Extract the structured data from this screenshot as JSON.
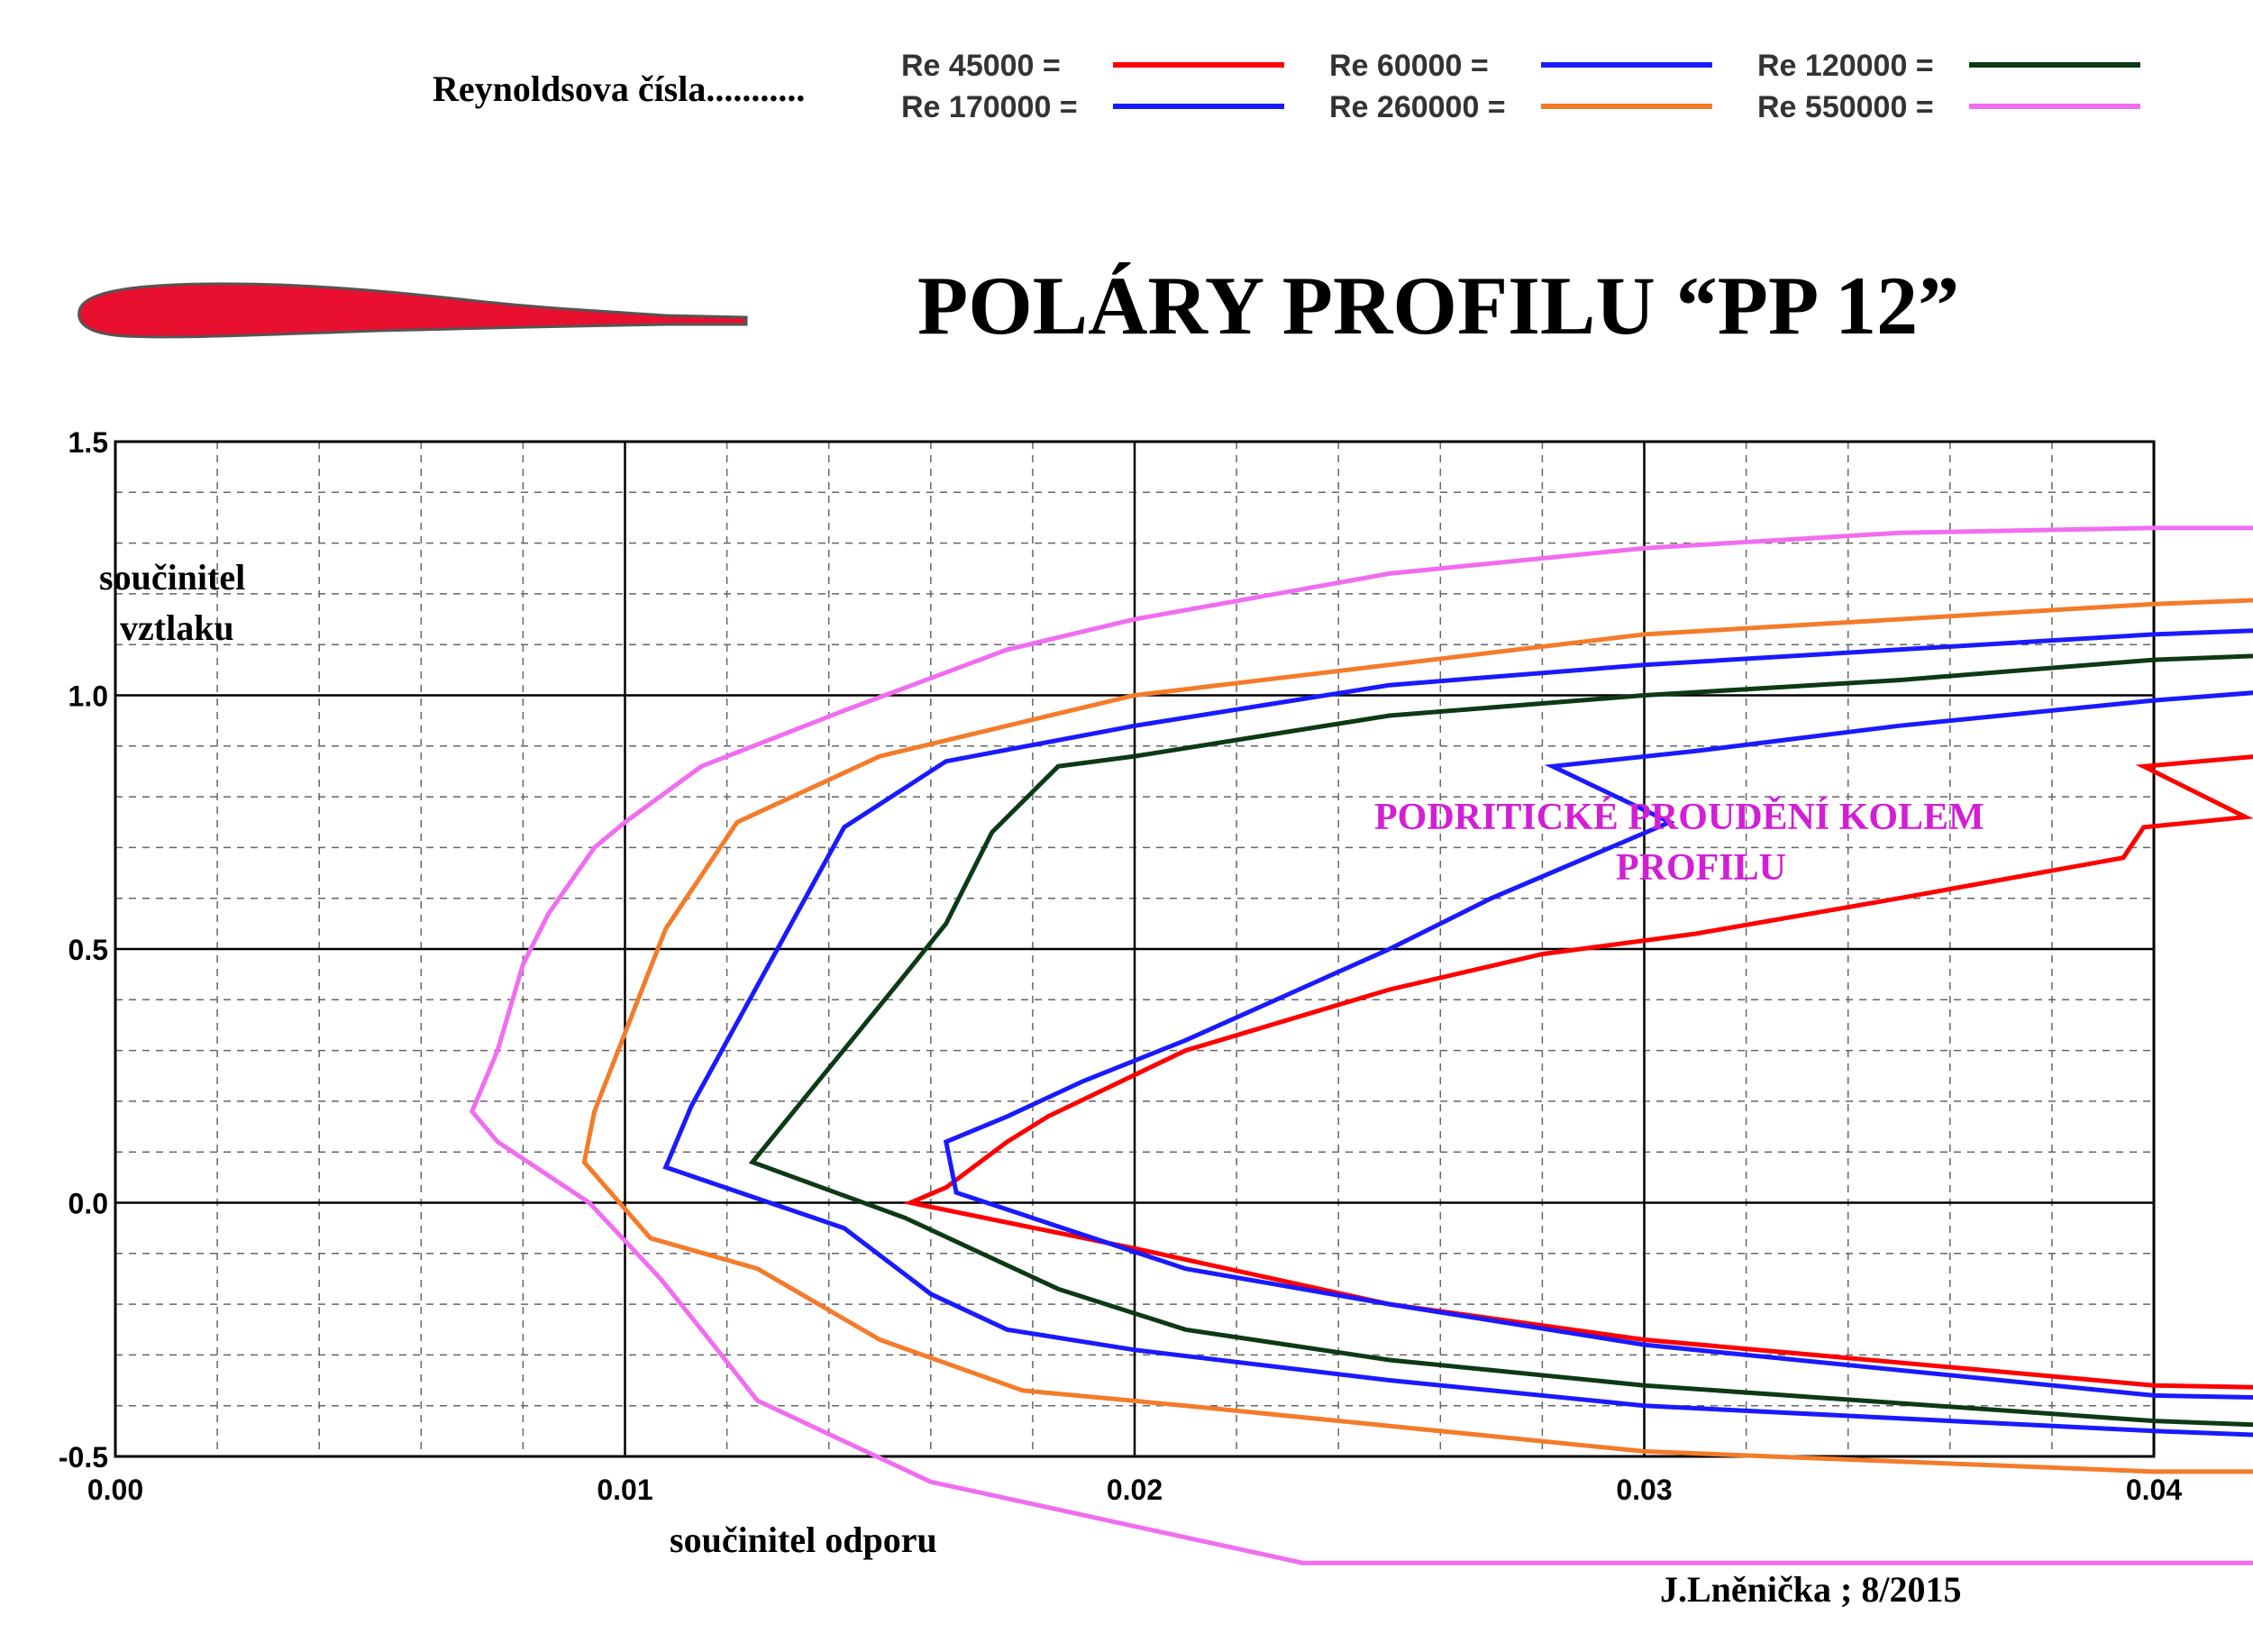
{
  "header": {
    "legend_caption": "Reynoldsova  čísla...........",
    "title": "POLÁRY  PROFILU  “PP 12”",
    "author": "J.Lněnička ; 8/2015"
  },
  "annotation": {
    "line1": "PODRITICKÉ  PROUDĚNÍ  KOLEM",
    "line2": "PROFILU"
  },
  "colors": {
    "airfoil_fill": "#e8102e",
    "grid": "#000000",
    "annotation": "#d21fd6"
  },
  "chart_data": {
    "type": "line",
    "title": "POLÁRY  PROFILU  “PP 12”",
    "xlabel": "součinitel  odporu",
    "ylabel_line1": "součinitel",
    "ylabel_line2": "vztlaku",
    "xlim": [
      0.0,
      0.04
    ],
    "ylim": [
      -0.5,
      1.5
    ],
    "x_ticks": [
      "0.00",
      "0.01",
      "0.02",
      "0.03",
      "0.04"
    ],
    "y_ticks": [
      "-0.5",
      "0.0",
      "0.5",
      "1.0",
      "1.5"
    ],
    "grid": true,
    "legend_position": "top",
    "series": [
      {
        "name": "Re 45000 =",
        "color": "#ff0000",
        "points": [
          [
            0.0452,
            -0.37
          ],
          [
            0.04,
            -0.36
          ],
          [
            0.03,
            -0.27
          ],
          [
            0.025,
            -0.2
          ],
          [
            0.02,
            -0.09
          ],
          [
            0.0156,
            0.0
          ],
          [
            0.0163,
            0.03
          ],
          [
            0.0175,
            0.12
          ],
          [
            0.0183,
            0.17
          ],
          [
            0.021,
            0.3
          ],
          [
            0.025,
            0.42
          ],
          [
            0.028,
            0.49
          ],
          [
            0.031,
            0.53
          ],
          [
            0.035,
            0.6
          ],
          [
            0.0394,
            0.68
          ],
          [
            0.0398,
            0.74
          ],
          [
            0.0418,
            0.76
          ],
          [
            0.0398,
            0.86
          ],
          [
            0.0432,
            0.89
          ]
        ]
      },
      {
        "name": "Re 60000 =",
        "color": "#1a1aff",
        "points": [
          [
            0.0452,
            -0.39
          ],
          [
            0.04,
            -0.38
          ],
          [
            0.03,
            -0.28
          ],
          [
            0.025,
            -0.2
          ],
          [
            0.021,
            -0.13
          ],
          [
            0.0186,
            -0.05
          ],
          [
            0.0165,
            0.02
          ],
          [
            0.0163,
            0.12
          ],
          [
            0.0175,
            0.17
          ],
          [
            0.019,
            0.24
          ],
          [
            0.021,
            0.32
          ],
          [
            0.025,
            0.5
          ],
          [
            0.027,
            0.6
          ],
          [
            0.0305,
            0.75
          ],
          [
            0.0282,
            0.86
          ],
          [
            0.031,
            0.89
          ],
          [
            0.035,
            0.94
          ],
          [
            0.04,
            0.99
          ],
          [
            0.0452,
            1.03
          ]
        ]
      },
      {
        "name": "Re 120000 =",
        "color": "#0d3a14",
        "points": [
          [
            0.0452,
            -0.45
          ],
          [
            0.04,
            -0.43
          ],
          [
            0.03,
            -0.36
          ],
          [
            0.025,
            -0.31
          ],
          [
            0.021,
            -0.25
          ],
          [
            0.0185,
            -0.17
          ],
          [
            0.0155,
            -0.03
          ],
          [
            0.0125,
            0.08
          ],
          [
            0.0155,
            0.45
          ],
          [
            0.0163,
            0.55
          ],
          [
            0.0172,
            0.73
          ],
          [
            0.0175,
            0.76
          ],
          [
            0.0185,
            0.86
          ],
          [
            0.02,
            0.88
          ],
          [
            0.025,
            0.96
          ],
          [
            0.03,
            1.0
          ],
          [
            0.035,
            1.03
          ],
          [
            0.04,
            1.07
          ],
          [
            0.0452,
            1.09
          ]
        ]
      },
      {
        "name": "Re 170000 =",
        "color": "#1a1aff",
        "points": [
          [
            0.0452,
            -0.47
          ],
          [
            0.04,
            -0.45
          ],
          [
            0.03,
            -0.4
          ],
          [
            0.025,
            -0.35
          ],
          [
            0.02,
            -0.29
          ],
          [
            0.0175,
            -0.25
          ],
          [
            0.016,
            -0.18
          ],
          [
            0.0143,
            -0.05
          ],
          [
            0.0108,
            0.07
          ],
          [
            0.0113,
            0.19
          ],
          [
            0.0143,
            0.74
          ],
          [
            0.0163,
            0.87
          ],
          [
            0.02,
            0.94
          ],
          [
            0.025,
            1.02
          ],
          [
            0.03,
            1.06
          ],
          [
            0.035,
            1.09
          ],
          [
            0.04,
            1.12
          ],
          [
            0.0452,
            1.14
          ]
        ]
      },
      {
        "name": "Re 260000 =",
        "color": "#f47b2a",
        "points": [
          [
            0.0452,
            -0.53
          ],
          [
            0.04,
            -0.53
          ],
          [
            0.03,
            -0.49
          ],
          [
            0.025,
            -0.44
          ],
          [
            0.021,
            -0.4
          ],
          [
            0.0178,
            -0.37
          ],
          [
            0.015,
            -0.27
          ],
          [
            0.0126,
            -0.13
          ],
          [
            0.0105,
            -0.07
          ],
          [
            0.0092,
            0.08
          ],
          [
            0.0094,
            0.18
          ],
          [
            0.0108,
            0.54
          ],
          [
            0.0122,
            0.75
          ],
          [
            0.015,
            0.88
          ],
          [
            0.0175,
            0.94
          ],
          [
            0.02,
            1.0
          ],
          [
            0.025,
            1.06
          ],
          [
            0.03,
            1.12
          ],
          [
            0.035,
            1.15
          ],
          [
            0.04,
            1.18
          ],
          [
            0.0452,
            1.2
          ]
        ]
      },
      {
        "name": "Re 550000 =",
        "color": "#f06df0",
        "points": [
          [
            0.0452,
            -0.71
          ],
          [
            0.0233,
            -0.71
          ],
          [
            0.016,
            -0.55
          ],
          [
            0.0126,
            -0.39
          ],
          [
            0.0115,
            -0.25
          ],
          [
            0.0107,
            -0.15
          ],
          [
            0.0093,
            0.0
          ],
          [
            0.0075,
            0.12
          ],
          [
            0.007,
            0.18
          ],
          [
            0.0075,
            0.3
          ],
          [
            0.008,
            0.47
          ],
          [
            0.0085,
            0.57
          ],
          [
            0.0094,
            0.7
          ],
          [
            0.01,
            0.75
          ],
          [
            0.0115,
            0.86
          ],
          [
            0.0143,
            0.97
          ],
          [
            0.0175,
            1.09
          ],
          [
            0.02,
            1.15
          ],
          [
            0.025,
            1.24
          ],
          [
            0.03,
            1.29
          ],
          [
            0.035,
            1.32
          ],
          [
            0.04,
            1.33
          ],
          [
            0.0452,
            1.33
          ]
        ]
      }
    ]
  }
}
